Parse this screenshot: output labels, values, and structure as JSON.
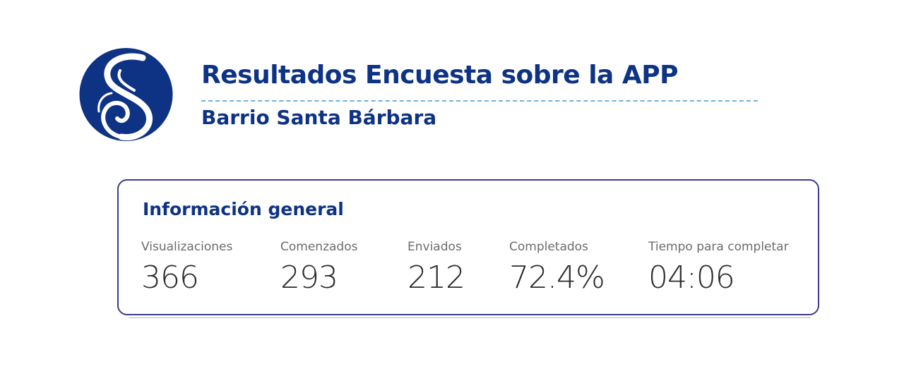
{
  "header": {
    "title": "Resultados Encuesta sobre la APP",
    "subtitle": "Barrio Santa Bárbara"
  },
  "colors": {
    "brand_blue": "#0e3385",
    "card_border": "#3b3c8f",
    "divider": "#6fb0dd"
  },
  "logo": {
    "icon": "s-swirl-logo-icon"
  },
  "card": {
    "title": "Información general",
    "metrics": [
      {
        "label": "Visualizaciones",
        "value": "366"
      },
      {
        "label": "Comenzados",
        "value": "293"
      },
      {
        "label": "Enviados",
        "value": "212"
      },
      {
        "label": "Completados",
        "value": "72.4%"
      },
      {
        "label": "Tiempo para completar",
        "value": "04:06"
      }
    ]
  }
}
